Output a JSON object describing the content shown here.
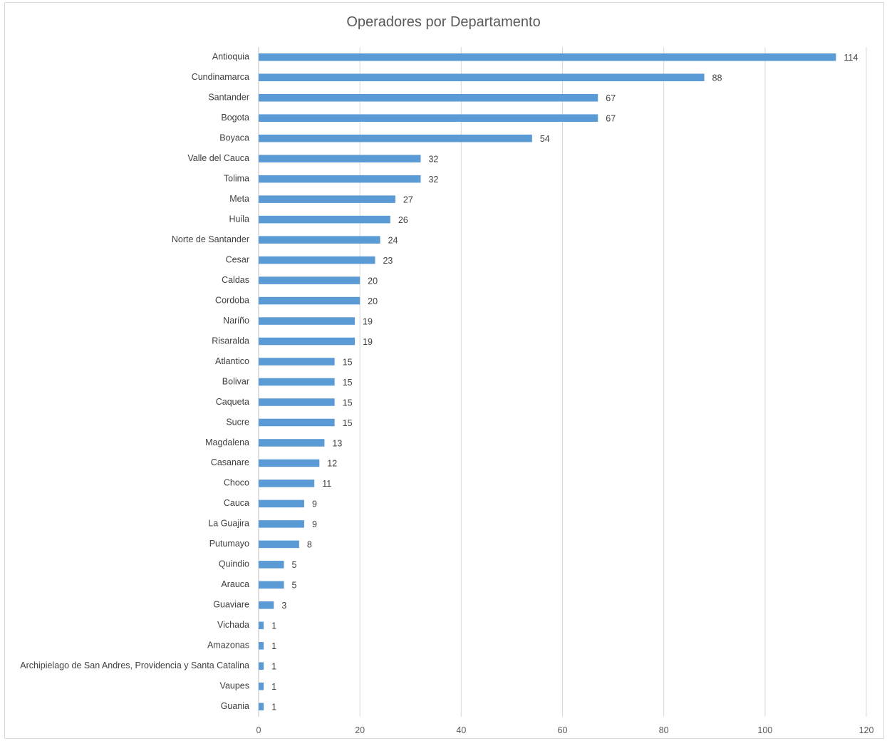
{
  "chart_data": {
    "type": "bar",
    "orientation": "horizontal",
    "title": "Operadores por Departamento",
    "xlabel": "",
    "ylabel": "",
    "xlim": [
      0,
      120
    ],
    "xticks": [
      0,
      20,
      40,
      60,
      80,
      100,
      120
    ],
    "grid": "vertical",
    "legend": "none",
    "bar_color": "#5b9bd5",
    "categories": [
      "Antioquia",
      "Cundinamarca",
      "Santander",
      "Bogota",
      "Boyaca",
      "Valle del Cauca",
      "Tolima",
      "Meta",
      "Huila",
      "Norte de Santander",
      "Cesar",
      "Caldas",
      "Cordoba",
      "Nariño",
      "Risaralda",
      "Atlantico",
      "Bolivar",
      "Caqueta",
      "Sucre",
      "Magdalena",
      "Casanare",
      "Choco",
      "Cauca",
      "La Guajira",
      "Putumayo",
      "Quindio",
      "Arauca",
      "Guaviare",
      "Vichada",
      "Amazonas",
      "Archipielago de San Andres, Providencia y Santa Catalina",
      "Vaupes",
      "Guania"
    ],
    "values": [
      114,
      88,
      67,
      67,
      54,
      32,
      32,
      27,
      26,
      24,
      23,
      20,
      20,
      19,
      19,
      15,
      15,
      15,
      15,
      13,
      12,
      11,
      9,
      9,
      8,
      5,
      5,
      3,
      1,
      1,
      1,
      1,
      1
    ]
  }
}
